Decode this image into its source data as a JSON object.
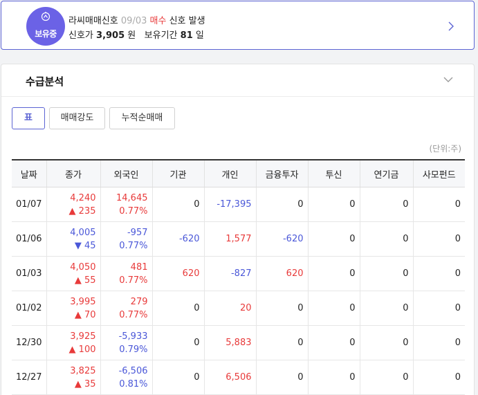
{
  "signal": {
    "badge_label": "보유중",
    "indicator_name": "라씨매매신호",
    "date": "09/03",
    "signal_type": "매수",
    "event_text": "신호 발생",
    "price_label": "신호가",
    "price_value": "3,905",
    "price_unit": "원",
    "holding_label": "보유기간",
    "holding_value": "81",
    "holding_unit": "일"
  },
  "section": {
    "title": "수급분석",
    "tabs": [
      {
        "label": "표"
      },
      {
        "label": "매매강도"
      },
      {
        "label": "누적순매매"
      }
    ],
    "unit_label": "(단위:주)"
  },
  "table": {
    "headers": [
      "날짜",
      "종가",
      "외국인",
      "기관",
      "개인",
      "금융투자",
      "투신",
      "연기금",
      "사모펀드"
    ],
    "rows": [
      {
        "date": "01/07",
        "close": "4,240",
        "change_dir": "up",
        "change": "235",
        "foreign": "14,645",
        "foreign_dir": "up",
        "foreign_ratio": "0.77%",
        "inst": "0",
        "inst_dir": "none",
        "indiv": "-17,395",
        "indiv_dir": "down",
        "fin": "0",
        "fin_dir": "none",
        "trust": "0",
        "pension": "0",
        "pef": "0"
      },
      {
        "date": "01/06",
        "close": "4,005",
        "change_dir": "down",
        "change": "45",
        "foreign": "-957",
        "foreign_dir": "down",
        "foreign_ratio": "0.77%",
        "inst": "-620",
        "inst_dir": "down",
        "indiv": "1,577",
        "indiv_dir": "up",
        "fin": "-620",
        "fin_dir": "down",
        "trust": "0",
        "pension": "0",
        "pef": "0"
      },
      {
        "date": "01/03",
        "close": "4,050",
        "change_dir": "up",
        "change": "55",
        "foreign": "481",
        "foreign_dir": "up",
        "foreign_ratio": "0.77%",
        "inst": "620",
        "inst_dir": "up",
        "indiv": "-827",
        "indiv_dir": "down",
        "fin": "620",
        "fin_dir": "up",
        "trust": "0",
        "pension": "0",
        "pef": "0"
      },
      {
        "date": "01/02",
        "close": "3,995",
        "change_dir": "up",
        "change": "70",
        "foreign": "279",
        "foreign_dir": "up",
        "foreign_ratio": "0.77%",
        "inst": "0",
        "inst_dir": "none",
        "indiv": "20",
        "indiv_dir": "up",
        "fin": "0",
        "fin_dir": "none",
        "trust": "0",
        "pension": "0",
        "pef": "0"
      },
      {
        "date": "12/30",
        "close": "3,925",
        "change_dir": "up",
        "change": "100",
        "foreign": "-5,933",
        "foreign_dir": "down",
        "foreign_ratio": "0.79%",
        "inst": "0",
        "inst_dir": "none",
        "indiv": "5,883",
        "indiv_dir": "up",
        "fin": "0",
        "fin_dir": "none",
        "trust": "0",
        "pension": "0",
        "pef": "0"
      },
      {
        "date": "12/27",
        "close": "3,825",
        "change_dir": "up",
        "change": "35",
        "foreign": "-6,506",
        "foreign_dir": "down",
        "foreign_ratio": "0.81%",
        "inst": "0",
        "inst_dir": "none",
        "indiv": "6,506",
        "indiv_dir": "up",
        "fin": "0",
        "fin_dir": "none",
        "trust": "0",
        "pension": "0",
        "pef": "0"
      }
    ]
  },
  "colors": {
    "accent": "#5b63d3",
    "badge": "#6b62e6",
    "up": "#e83a3a",
    "down": "#4a57d8"
  },
  "icons": {
    "badge": "person-arrow-icon",
    "expand": "chevron-right-icon",
    "collapse": "chevron-down-icon",
    "up": "triangle-up-icon",
    "down": "triangle-down-icon"
  }
}
